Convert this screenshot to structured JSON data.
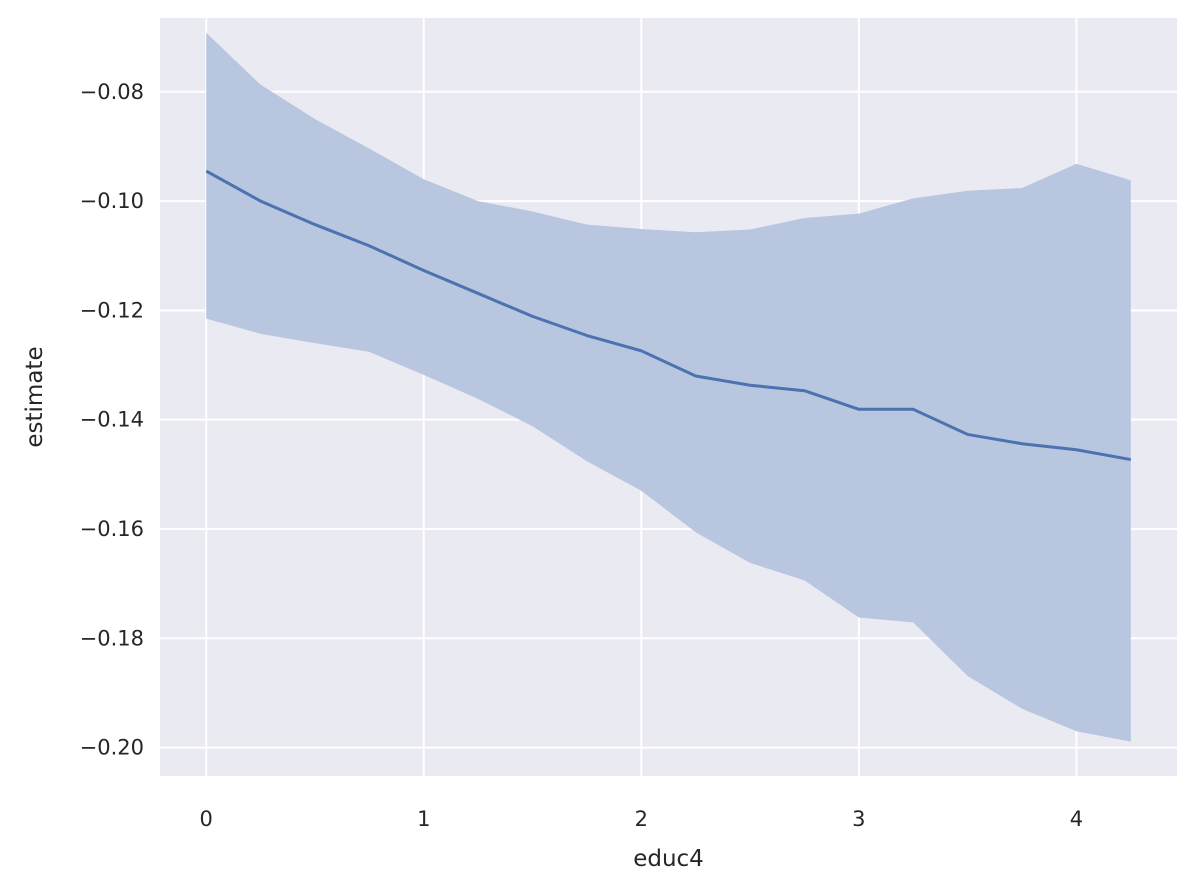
{
  "chart_data": {
    "type": "line",
    "title": "",
    "xlabel": "educ4",
    "ylabel": "estimate",
    "xlim": [
      -0.2125,
      4.4625
    ],
    "ylim": [
      -0.2052,
      -0.0665
    ],
    "grid": true,
    "style": "seaborn darkgrid",
    "colors": {
      "background": "#eaeaf2",
      "grid": "#ffffff",
      "line": "#4c72b0",
      "band": "#b8c6df"
    },
    "x_ticks": [
      {
        "value": 0,
        "label": "0"
      },
      {
        "value": 1,
        "label": "1"
      },
      {
        "value": 2,
        "label": "2"
      },
      {
        "value": 3,
        "label": "3"
      },
      {
        "value": 4,
        "label": "4"
      }
    ],
    "y_ticks": [
      {
        "value": -0.08,
        "label": "−0.08"
      },
      {
        "value": -0.1,
        "label": "−0.10"
      },
      {
        "value": -0.12,
        "label": "−0.12"
      },
      {
        "value": -0.14,
        "label": "−0.14"
      },
      {
        "value": -0.16,
        "label": "−0.16"
      },
      {
        "value": -0.18,
        "label": "−0.18"
      },
      {
        "value": -0.2,
        "label": "−0.20"
      }
    ],
    "x": [
      0,
      0.25,
      0.5,
      0.75,
      1.0,
      1.25,
      1.5,
      1.75,
      2.0,
      2.25,
      2.5,
      2.75,
      3.0,
      3.25,
      3.5,
      3.75,
      4.0,
      4.25
    ],
    "series": [
      {
        "values": [
          -0.0945,
          -0.1,
          -0.1043,
          -0.1082,
          -0.1127,
          -0.1169,
          -0.1211,
          -0.1246,
          -0.1274,
          -0.132,
          -0.1337,
          -0.1347,
          -0.1381,
          -0.1381,
          -0.1427,
          -0.1444,
          -0.1455,
          -0.1473
        ],
        "lower": [
          -0.1215,
          -0.1243,
          -0.126,
          -0.1276,
          -0.1318,
          -0.1362,
          -0.1412,
          -0.1476,
          -0.153,
          -0.1606,
          -0.1662,
          -0.1694,
          -0.1762,
          -0.1771,
          -0.1869,
          -0.1929,
          -0.197,
          -0.1989
        ],
        "upper": [
          -0.0692,
          -0.0787,
          -0.085,
          -0.0904,
          -0.096,
          -0.1,
          -0.1019,
          -0.1043,
          -0.1051,
          -0.1057,
          -0.1052,
          -0.1031,
          -0.1023,
          -0.0995,
          -0.0981,
          -0.0976,
          -0.0932,
          -0.0962
        ]
      }
    ]
  }
}
